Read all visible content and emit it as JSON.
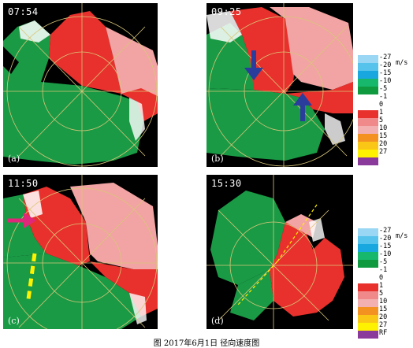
{
  "panels": [
    {
      "time": "07:54",
      "label": "(a)"
    },
    {
      "time": "09:25",
      "label": "(b)"
    },
    {
      "time": "11:50",
      "label": "(c)"
    },
    {
      "time": "15:30",
      "label": "(d)"
    }
  ],
  "legend_unit": "m/s",
  "legend_top": [
    {
      "value": "-27",
      "color": "#9ad7f5"
    },
    {
      "value": "-20",
      "color": "#56c3ec"
    },
    {
      "value": "-15",
      "color": "#19a7e0"
    },
    {
      "value": "-10",
      "color": "#17b86b"
    },
    {
      "value": "-5",
      "color": "#0f9a40"
    },
    {
      "value": "-1",
      "color": "#ffffff"
    },
    {
      "value": "0",
      "color": "#ffffff"
    },
    {
      "value": "1",
      "color": "#e8312c"
    },
    {
      "value": "5",
      "color": "#f08a8a"
    },
    {
      "value": "10",
      "color": "#f2b0b0"
    },
    {
      "value": "15",
      "color": "#f39221"
    },
    {
      "value": "20",
      "color": "#fbc716"
    },
    {
      "value": "27",
      "color": "#fff200"
    },
    {
      "value": "",
      "color": "#8a3a9a"
    }
  ],
  "legend_bottom": [
    {
      "value": "-27",
      "color": "#9ad7f5"
    },
    {
      "value": "-20",
      "color": "#56c3ec"
    },
    {
      "value": "-15",
      "color": "#19a7e0"
    },
    {
      "value": "-10",
      "color": "#17b86b"
    },
    {
      "value": "-5",
      "color": "#0f9a40"
    },
    {
      "value": "-1",
      "color": "#ffffff"
    },
    {
      "value": "0",
      "color": "#ffffff"
    },
    {
      "value": "1",
      "color": "#e8312c"
    },
    {
      "value": "5",
      "color": "#f08a8a"
    },
    {
      "value": "10",
      "color": "#f2b0b0"
    },
    {
      "value": "15",
      "color": "#f39221"
    },
    {
      "value": "20",
      "color": "#fbc716"
    },
    {
      "value": "27",
      "color": "#fff200"
    },
    {
      "value": "RF",
      "color": "#8a3a9a"
    }
  ],
  "colors": {
    "inbound_green": "#1a9a45",
    "outbound_red": "#e8312c",
    "outbound_pink": "#f2a3a3",
    "range_ring": "#d9c77a",
    "arrow_blue": "#2a3d9c",
    "arrow_magenta": "#e0287a",
    "dash_yellow": "#fff200"
  },
  "caption": "图 2017年6月1日 径向速度图"
}
